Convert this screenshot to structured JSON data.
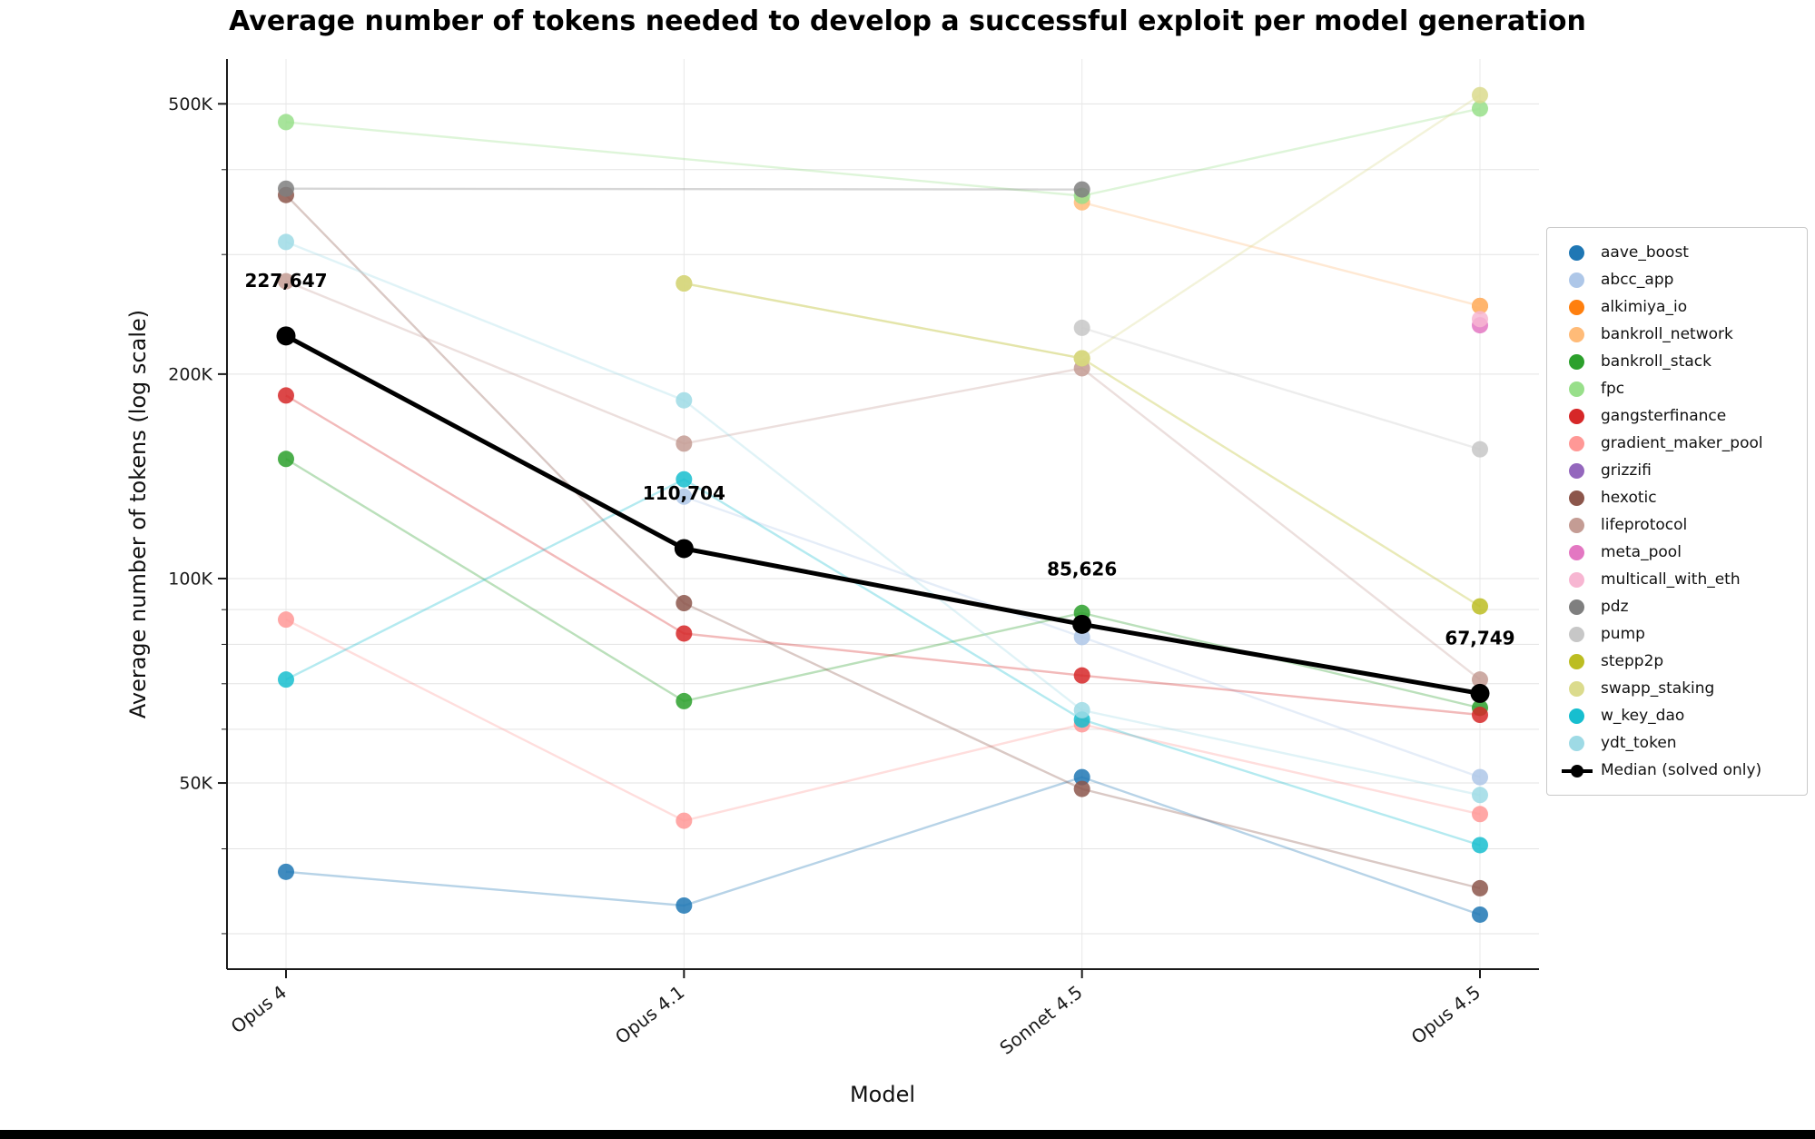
{
  "chart_data": {
    "type": "line",
    "title": "Average number of tokens needed to develop a successful exploit per model generation",
    "xlabel": "Model",
    "ylabel": "Average number of tokens (log scale)",
    "yscale": "log",
    "grid": true,
    "legend_position": "right",
    "categories": [
      "Opus 4",
      "Opus 4.1",
      "Sonnet 4.5",
      "Opus 4.5"
    ],
    "ylim": [
      26600,
      582000
    ],
    "yticks": [
      {
        "value": 500000,
        "label": "500K"
      },
      {
        "value": 400000,
        "label": ""
      },
      {
        "value": 300000,
        "label": ""
      },
      {
        "value": 200000,
        "label": "200K"
      },
      {
        "value": 100000,
        "label": "100K"
      },
      {
        "value": 90000,
        "label": ""
      },
      {
        "value": 80000,
        "label": ""
      },
      {
        "value": 70000,
        "label": ""
      },
      {
        "value": 60000,
        "label": ""
      },
      {
        "value": 50000,
        "label": "50K"
      },
      {
        "value": 40000,
        "label": ""
      },
      {
        "value": 30000,
        "label": ""
      }
    ],
    "series": [
      {
        "name": "aave_boost",
        "color": "#1f77b4",
        "values": [
          37000,
          33000,
          51000,
          32000
        ]
      },
      {
        "name": "abcc_app",
        "color": "#aec7e8",
        "values": [
          null,
          132000,
          82000,
          51000
        ]
      },
      {
        "name": "alkimiya_io",
        "color": "#ff7f0e",
        "values": [
          null,
          null,
          null,
          252000
        ]
      },
      {
        "name": "bankroll_network",
        "color": "#ffbb78",
        "values": [
          null,
          null,
          358000,
          252000
        ]
      },
      {
        "name": "bankroll_stack",
        "color": "#2ca02c",
        "values": [
          150000,
          66000,
          89000,
          64500
        ]
      },
      {
        "name": "fpc",
        "color": "#98df8a",
        "values": [
          470000,
          null,
          366000,
          492000
        ]
      },
      {
        "name": "gangsterfinance",
        "color": "#d62728",
        "values": [
          186000,
          83000,
          72000,
          63000
        ]
      },
      {
        "name": "gradient_maker_pool",
        "color": "#ff9896",
        "values": [
          87000,
          44000,
          61000,
          45000
        ]
      },
      {
        "name": "grizzifi",
        "color": "#9467bd",
        "values": [
          null,
          null,
          null,
          null
        ]
      },
      {
        "name": "hexotic",
        "color": "#8c564b",
        "values": [
          367000,
          92000,
          49000,
          35000
        ]
      },
      {
        "name": "lifeprotocol",
        "color": "#c49c94",
        "values": [
          274000,
          158000,
          204000,
          71000
        ]
      },
      {
        "name": "meta_pool",
        "color": "#e377c2",
        "values": [
          null,
          null,
          null,
          236000
        ]
      },
      {
        "name": "multicall_with_eth",
        "color": "#f7b6d2",
        "values": [
          null,
          null,
          null,
          241000
        ]
      },
      {
        "name": "pdz",
        "color": "#7f7f7f",
        "values": [
          375000,
          null,
          374000,
          null
        ]
      },
      {
        "name": "pump",
        "color": "#c7c7c7",
        "values": [
          null,
          null,
          234000,
          155000
        ]
      },
      {
        "name": "stepp2p",
        "color": "#bcbd22",
        "values": [
          null,
          272000,
          211000,
          91000
        ]
      },
      {
        "name": "swapp_staking",
        "color": "#dbdb8d",
        "values": [
          null,
          272000,
          211000,
          515000
        ]
      },
      {
        "name": "w_key_dao",
        "color": "#17becf",
        "values": [
          71000,
          140000,
          62000,
          40500
        ]
      },
      {
        "name": "ydt_token",
        "color": "#9edae5",
        "values": [
          313000,
          183000,
          64000,
          48000
        ]
      }
    ],
    "median": {
      "name": "Median (solved only)",
      "color": "#000000",
      "values": [
        227647,
        110704,
        85626,
        67749
      ],
      "point_labels": [
        "227,647",
        "110,704",
        "85,626",
        "67,749"
      ]
    }
  }
}
